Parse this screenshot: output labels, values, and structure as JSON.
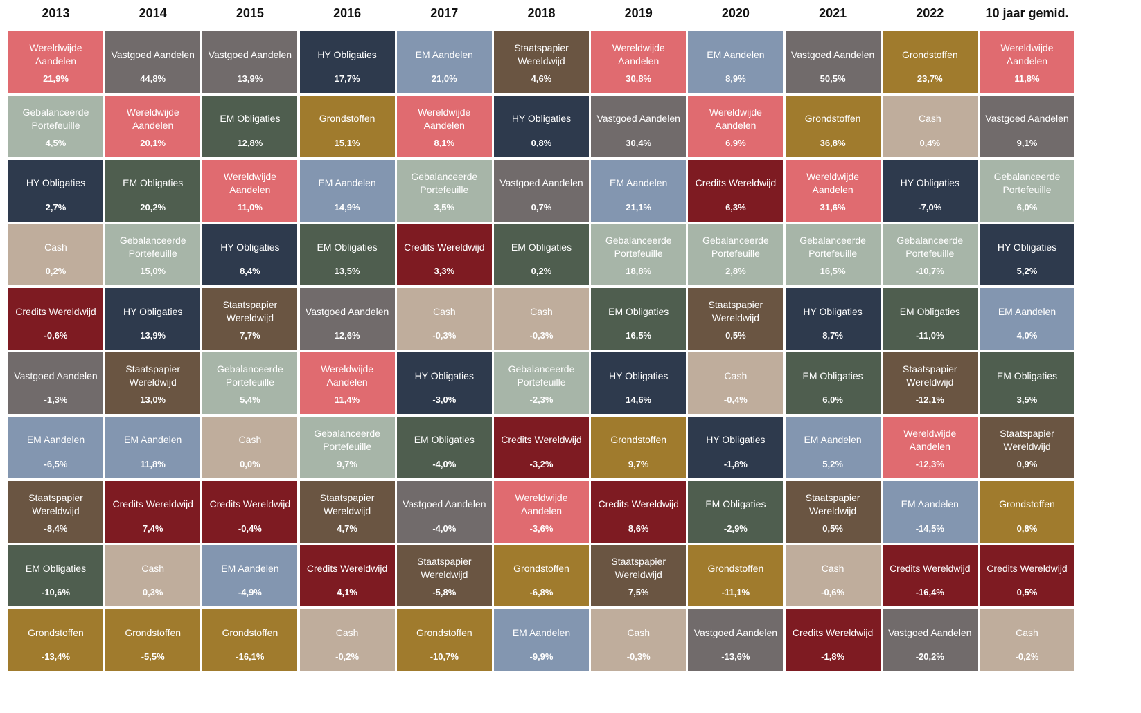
{
  "chart_data": {
    "type": "table",
    "columns": [
      "2013",
      "2014",
      "2015",
      "2016",
      "2017",
      "2018",
      "2019",
      "2020",
      "2021",
      "2022",
      "10 jaar gemid."
    ],
    "colors": {
      "Wereldwijde Aandelen": "#e06b70",
      "Vastgoed Aandelen": "#716b6b",
      "HY Obligaties": "#2e3a4d",
      "EM Aandelen": "#8396b0",
      "Staatspapier Wereldwijd": "#6a5542",
      "Grondstoffen": "#a07b2d",
      "Gebalanceerde Portefeuille": "#a7b5a8",
      "EM Obligaties": "#4f5e4f",
      "Cash": "#bfad9c",
      "Credits Wereldwijd": "#7e1b22"
    },
    "cells": [
      [
        {
          "label": "Wereldwijde Aandelen",
          "value": "21,9%"
        },
        {
          "label": "Gebalanceerde Portefeuille",
          "value": "4,5%"
        },
        {
          "label": "HY Obligaties",
          "value": "2,7%"
        },
        {
          "label": "Cash",
          "value": "0,2%"
        },
        {
          "label": "Credits Wereldwijd",
          "value": "-0,6%"
        },
        {
          "label": "Vastgoed Aandelen",
          "value": "-1,3%"
        },
        {
          "label": "EM Aandelen",
          "value": "-6,5%"
        },
        {
          "label": "Staatspapier Wereldwijd",
          "value": "-8,4%"
        },
        {
          "label": "EM Obligaties",
          "value": "-10,6%"
        },
        {
          "label": "Grondstoffen",
          "value": "-13,4%"
        }
      ],
      [
        {
          "label": "Vastgoed Aandelen",
          "value": "44,8%"
        },
        {
          "label": "Wereldwijde Aandelen",
          "value": "20,1%"
        },
        {
          "label": "EM Obligaties",
          "value": "20,2%"
        },
        {
          "label": "Gebalanceerde Portefeuille",
          "value": "15,0%"
        },
        {
          "label": "HY Obligaties",
          "value": "13,9%"
        },
        {
          "label": "Staatspapier Wereldwijd",
          "value": "13,0%"
        },
        {
          "label": "EM Aandelen",
          "value": "11,8%"
        },
        {
          "label": "Credits Wereldwijd",
          "value": "7,4%"
        },
        {
          "label": "Cash",
          "value": "0,3%"
        },
        {
          "label": "Grondstoffen",
          "value": "-5,5%"
        }
      ],
      [
        {
          "label": "Vastgoed Aandelen",
          "value": "13,9%"
        },
        {
          "label": "EM Obligaties",
          "value": "12,8%"
        },
        {
          "label": "Wereldwijde Aandelen",
          "value": "11,0%"
        },
        {
          "label": "HY Obligaties",
          "value": "8,4%"
        },
        {
          "label": "Staatspapier Wereldwijd",
          "value": "7,7%"
        },
        {
          "label": "Gebalanceerde Portefeuille",
          "value": "5,4%"
        },
        {
          "label": "Cash",
          "value": "0,0%"
        },
        {
          "label": "Credits Wereldwijd",
          "value": "-0,4%"
        },
        {
          "label": "EM Aandelen",
          "value": "-4,9%"
        },
        {
          "label": "Grondstoffen",
          "value": "-16,1%"
        }
      ],
      [
        {
          "label": "HY Obligaties",
          "value": "17,7%"
        },
        {
          "label": "Grondstoffen",
          "value": "15,1%"
        },
        {
          "label": "EM Aandelen",
          "value": "14,9%"
        },
        {
          "label": "EM Obligaties",
          "value": "13,5%"
        },
        {
          "label": "Vastgoed Aandelen",
          "value": "12,6%"
        },
        {
          "label": "Wereldwijde Aandelen",
          "value": "11,4%"
        },
        {
          "label": "Gebalanceerde Portefeuille",
          "value": "9,7%"
        },
        {
          "label": "Staatspapier Wereldwijd",
          "value": "4,7%"
        },
        {
          "label": "Credits Wereldwijd",
          "value": "4,1%"
        },
        {
          "label": "Cash",
          "value": "-0,2%"
        }
      ],
      [
        {
          "label": "EM Aandelen",
          "value": "21,0%"
        },
        {
          "label": "Wereldwijde Aandelen",
          "value": "8,1%"
        },
        {
          "label": "Gebalanceerde Portefeuille",
          "value": "3,5%"
        },
        {
          "label": "Credits Wereldwijd",
          "value": "3,3%"
        },
        {
          "label": "Cash",
          "value": "-0,3%"
        },
        {
          "label": "HY Obligaties",
          "value": "-3,0%"
        },
        {
          "label": "EM Obligaties",
          "value": "-4,0%"
        },
        {
          "label": "Vastgoed Aandelen",
          "value": "-4,0%"
        },
        {
          "label": "Staatspapier Wereldwijd",
          "value": "-5,8%"
        },
        {
          "label": "Grondstoffen",
          "value": "-10,7%"
        }
      ],
      [
        {
          "label": "Staatspapier Wereldwijd",
          "value": "4,6%"
        },
        {
          "label": "HY Obligaties",
          "value": "0,8%"
        },
        {
          "label": "Vastgoed Aandelen",
          "value": "0,7%"
        },
        {
          "label": "EM Obligaties",
          "value": "0,2%"
        },
        {
          "label": "Cash",
          "value": "-0,3%"
        },
        {
          "label": "Gebalanceerde Portefeuille",
          "value": "-2,3%"
        },
        {
          "label": "Credits Wereldwijd",
          "value": "-3,2%"
        },
        {
          "label": "Wereldwijde Aandelen",
          "value": "-3,6%"
        },
        {
          "label": "Grondstoffen",
          "value": "-6,8%"
        },
        {
          "label": "EM Aandelen",
          "value": "-9,9%"
        }
      ],
      [
        {
          "label": "Wereldwijde Aandelen",
          "value": "30,8%"
        },
        {
          "label": "Vastgoed Aandelen",
          "value": "30,4%"
        },
        {
          "label": "EM Aandelen",
          "value": "21,1%"
        },
        {
          "label": "Gebalanceerde Portefeuille",
          "value": "18,8%"
        },
        {
          "label": "EM Obligaties",
          "value": "16,5%"
        },
        {
          "label": "HY Obligaties",
          "value": "14,6%"
        },
        {
          "label": "Grondstoffen",
          "value": "9,7%"
        },
        {
          "label": "Credits Wereldwijd",
          "value": "8,6%"
        },
        {
          "label": "Staatspapier Wereldwijd",
          "value": "7,5%"
        },
        {
          "label": "Cash",
          "value": "-0,3%"
        }
      ],
      [
        {
          "label": "EM Aandelen",
          "value": "8,9%"
        },
        {
          "label": "Wereldwijde Aandelen",
          "value": "6,9%"
        },
        {
          "label": "Credits Wereldwijd",
          "value": "6,3%"
        },
        {
          "label": "Gebalanceerde Portefeuille",
          "value": "2,8%"
        },
        {
          "label": "Staatspapier Wereldwijd",
          "value": "0,5%"
        },
        {
          "label": "Cash",
          "value": "-0,4%"
        },
        {
          "label": "HY Obligaties",
          "value": "-1,8%"
        },
        {
          "label": "EM Obligaties",
          "value": "-2,9%"
        },
        {
          "label": "Grondstoffen",
          "value": "-11,1%"
        },
        {
          "label": "Vastgoed Aandelen",
          "value": "-13,6%"
        }
      ],
      [
        {
          "label": "Vastgoed Aandelen",
          "value": "50,5%"
        },
        {
          "label": "Grondstoffen",
          "value": "36,8%"
        },
        {
          "label": "Wereldwijde Aandelen",
          "value": "31,6%"
        },
        {
          "label": "Gebalanceerde Portefeuille",
          "value": "16,5%"
        },
        {
          "label": "HY Obligaties",
          "value": "8,7%"
        },
        {
          "label": "EM Obligaties",
          "value": "6,0%"
        },
        {
          "label": "EM Aandelen",
          "value": "5,2%"
        },
        {
          "label": "Staatspapier Wereldwijd",
          "value": "0,5%"
        },
        {
          "label": "Cash",
          "value": "-0,6%"
        },
        {
          "label": "Credits Wereldwijd",
          "value": "-1,8%"
        }
      ],
      [
        {
          "label": "Grondstoffen",
          "value": "23,7%"
        },
        {
          "label": "Cash",
          "value": "0,4%"
        },
        {
          "label": "HY Obligaties",
          "value": "-7,0%"
        },
        {
          "label": "Gebalanceerde Portefeuille",
          "value": "-10,7%"
        },
        {
          "label": "EM Obligaties",
          "value": "-11,0%"
        },
        {
          "label": "Staatspapier Wereldwijd",
          "value": "-12,1%"
        },
        {
          "label": "Wereldwijde Aandelen",
          "value": "-12,3%"
        },
        {
          "label": "EM Aandelen",
          "value": "-14,5%"
        },
        {
          "label": "Credits Wereldwijd",
          "value": "-16,4%"
        },
        {
          "label": "Vastgoed Aandelen",
          "value": "-20,2%"
        }
      ],
      [
        {
          "label": "Wereldwijde Aandelen",
          "value": "11,8%"
        },
        {
          "label": "Vastgoed Aandelen",
          "value": "9,1%"
        },
        {
          "label": "Gebalanceerde Portefeuille",
          "value": "6,0%"
        },
        {
          "label": "HY Obligaties",
          "value": "5,2%"
        },
        {
          "label": "EM Aandelen",
          "value": "4,0%"
        },
        {
          "label": "EM Obligaties",
          "value": "3,5%"
        },
        {
          "label": "Staatspapier Wereldwijd",
          "value": "0,9%"
        },
        {
          "label": "Grondstoffen",
          "value": "0,8%"
        },
        {
          "label": "Credits Wereldwijd",
          "value": "0,5%"
        },
        {
          "label": "Cash",
          "value": "-0,2%"
        }
      ]
    ]
  }
}
